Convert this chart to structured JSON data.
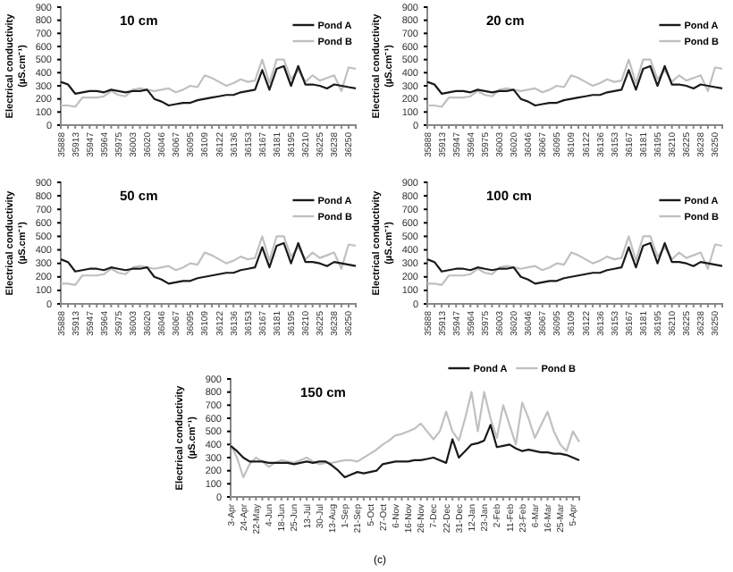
{
  "chart_data": [
    {
      "type": "line",
      "title": "10 cm",
      "ylabel": "Electrical conductivity (µS.cm⁻¹)",
      "ylim": [
        0,
        900
      ],
      "yticks": [
        0,
        100,
        200,
        300,
        400,
        500,
        600,
        700,
        800,
        900
      ],
      "legend": "top right",
      "categories": [
        "35888",
        null,
        "35913",
        null,
        "35947",
        null,
        "35964",
        null,
        "35975",
        null,
        "36003",
        null,
        "36020",
        null,
        "36046",
        null,
        "36067",
        null,
        "36095",
        null,
        "36109",
        null,
        "36122",
        null,
        "36136",
        null,
        "36153",
        null,
        "36167",
        null,
        "36181",
        null,
        "36195",
        null,
        "36210",
        null,
        "36225",
        null,
        "36238",
        null,
        "36250",
        null
      ],
      "series": [
        {
          "name": "Pond A",
          "color": "#1a1a1a",
          "values": [
            330,
            310,
            240,
            250,
            260,
            260,
            250,
            270,
            260,
            250,
            260,
            260,
            270,
            200,
            180,
            150,
            160,
            170,
            170,
            190,
            200,
            210,
            220,
            230,
            230,
            250,
            260,
            270,
            420,
            270,
            430,
            450,
            300,
            450,
            310,
            310,
            300,
            280,
            310,
            300,
            290,
            280
          ]
        },
        {
          "name": "Pond B",
          "color": "#c0c0c0",
          "values": [
            150,
            150,
            140,
            210,
            210,
            210,
            220,
            260,
            230,
            220,
            270,
            280,
            270,
            260,
            270,
            280,
            250,
            270,
            300,
            290,
            380,
            360,
            330,
            300,
            320,
            350,
            330,
            340,
            500,
            320,
            500,
            500,
            350,
            420,
            330,
            380,
            340,
            360,
            380,
            260,
            440,
            430
          ]
        }
      ]
    },
    {
      "type": "line",
      "title": "20 cm",
      "ylabel": "Electrical conductivity (µS.cm⁻¹)",
      "ylim": [
        0,
        900
      ],
      "yticks": [
        0,
        100,
        200,
        300,
        400,
        500,
        600,
        700,
        800,
        900
      ],
      "legend": "top right",
      "categories": [
        "35888",
        null,
        "35913",
        null,
        "35947",
        null,
        "35964",
        null,
        "35975",
        null,
        "36003",
        null,
        "36020",
        null,
        "36046",
        null,
        "36067",
        null,
        "36095",
        null,
        "36109",
        null,
        "36122",
        null,
        "36136",
        null,
        "36153",
        null,
        "36167",
        null,
        "36181",
        null,
        "36195",
        null,
        "36210",
        null,
        "36225",
        null,
        "36238",
        null,
        "36250",
        null
      ],
      "series": [
        {
          "name": "Pond A",
          "color": "#1a1a1a",
          "values": [
            330,
            310,
            240,
            250,
            260,
            260,
            250,
            270,
            260,
            250,
            260,
            260,
            270,
            200,
            180,
            150,
            160,
            170,
            170,
            190,
            200,
            210,
            220,
            230,
            230,
            250,
            260,
            270,
            420,
            270,
            430,
            450,
            300,
            450,
            310,
            310,
            300,
            280,
            310,
            300,
            290,
            280
          ]
        },
        {
          "name": "Pond B",
          "color": "#c0c0c0",
          "values": [
            150,
            150,
            140,
            210,
            210,
            210,
            220,
            260,
            230,
            220,
            270,
            280,
            270,
            260,
            270,
            280,
            250,
            270,
            300,
            290,
            380,
            360,
            330,
            300,
            320,
            350,
            330,
            340,
            500,
            320,
            500,
            500,
            350,
            420,
            330,
            380,
            340,
            360,
            380,
            260,
            440,
            430
          ]
        }
      ]
    },
    {
      "type": "line",
      "title": "50 cm",
      "ylabel": "Electrical conductivity (µS.cm⁻¹)",
      "ylim": [
        0,
        900
      ],
      "yticks": [
        0,
        100,
        200,
        300,
        400,
        500,
        600,
        700,
        800,
        900
      ],
      "legend": "top right",
      "categories": [
        "35888",
        null,
        "35913",
        null,
        "35947",
        null,
        "35964",
        null,
        "35975",
        null,
        "36003",
        null,
        "36020",
        null,
        "36046",
        null,
        "36067",
        null,
        "36095",
        null,
        "36109",
        null,
        "36122",
        null,
        "36136",
        null,
        "36153",
        null,
        "36167",
        null,
        "36181",
        null,
        "36195",
        null,
        "36210",
        null,
        "36225",
        null,
        "36238",
        null,
        "36250",
        null
      ],
      "series": [
        {
          "name": "Pond A",
          "color": "#1a1a1a",
          "values": [
            330,
            310,
            240,
            250,
            260,
            260,
            250,
            270,
            260,
            250,
            260,
            260,
            270,
            200,
            180,
            150,
            160,
            170,
            170,
            190,
            200,
            210,
            220,
            230,
            230,
            250,
            260,
            270,
            420,
            270,
            430,
            450,
            300,
            450,
            310,
            310,
            300,
            280,
            310,
            300,
            290,
            280
          ]
        },
        {
          "name": "Pond B",
          "color": "#c0c0c0",
          "values": [
            150,
            150,
            140,
            210,
            210,
            210,
            220,
            260,
            230,
            220,
            270,
            280,
            270,
            260,
            270,
            280,
            250,
            270,
            300,
            290,
            380,
            360,
            330,
            300,
            320,
            350,
            330,
            340,
            500,
            320,
            500,
            500,
            350,
            420,
            330,
            380,
            340,
            360,
            380,
            260,
            440,
            430
          ]
        }
      ]
    },
    {
      "type": "line",
      "title": "100 cm",
      "ylabel": "Electrical conductivity (µS.cm⁻¹)",
      "ylim": [
        0,
        900
      ],
      "yticks": [
        0,
        100,
        200,
        300,
        400,
        500,
        600,
        700,
        800,
        900
      ],
      "legend": "top right",
      "categories": [
        "35888",
        null,
        "35913",
        null,
        "35947",
        null,
        "35964",
        null,
        "35975",
        null,
        "36003",
        null,
        "36020",
        null,
        "36046",
        null,
        "36067",
        null,
        "36095",
        null,
        "36109",
        null,
        "36122",
        null,
        "36136",
        null,
        "36153",
        null,
        "36167",
        null,
        "36181",
        null,
        "36195",
        null,
        "36210",
        null,
        "36225",
        null,
        "36238",
        null,
        "36250",
        null
      ],
      "series": [
        {
          "name": "Pond A",
          "color": "#1a1a1a",
          "values": [
            330,
            310,
            240,
            250,
            260,
            260,
            250,
            270,
            260,
            250,
            260,
            260,
            270,
            200,
            180,
            150,
            160,
            170,
            170,
            190,
            200,
            210,
            220,
            230,
            230,
            250,
            260,
            270,
            420,
            270,
            430,
            450,
            300,
            450,
            310,
            310,
            300,
            280,
            310,
            300,
            290,
            280
          ]
        },
        {
          "name": "Pond B",
          "color": "#c0c0c0",
          "values": [
            150,
            150,
            140,
            210,
            210,
            210,
            220,
            260,
            230,
            220,
            270,
            280,
            270,
            260,
            270,
            280,
            250,
            270,
            300,
            290,
            380,
            360,
            330,
            300,
            320,
            350,
            330,
            340,
            500,
            320,
            500,
            500,
            350,
            420,
            330,
            380,
            340,
            360,
            380,
            260,
            440,
            430
          ]
        }
      ]
    },
    {
      "type": "line",
      "title": "150 cm",
      "ylabel": "Electrical conductivity (µS.cm⁻¹)",
      "ylim": [
        0,
        900
      ],
      "yticks": [
        0,
        100,
        200,
        300,
        400,
        500,
        600,
        700,
        800,
        900
      ],
      "legend": "top right",
      "annotations": [
        "(c)"
      ],
      "categories": [
        "3-Apr",
        null,
        "24-Apr",
        null,
        "22-May",
        null,
        "4-Jun",
        null,
        "18-Jun",
        null,
        "25-Jun",
        null,
        "13-Jul",
        null,
        "30-Jul",
        null,
        "13-Aug",
        null,
        "1-Sep",
        null,
        "21-Sep",
        null,
        "5-Oct",
        null,
        "27-Oct",
        null,
        "6-Nov",
        null,
        "16-Nov",
        null,
        "26-Nov",
        null,
        "7-Dec",
        null,
        "22-Dec",
        null,
        "31-Dec",
        null,
        "12-Jan",
        null,
        "23-Jan",
        null,
        "2-Feb",
        null,
        "11-Feb",
        null,
        "23-Feb",
        null,
        "6-Mar",
        null,
        "16-Mar",
        null,
        "25-Mar",
        null,
        "5-Apr",
        null
      ],
      "series": [
        {
          "name": "Pond A",
          "color": "#1a1a1a",
          "values": [
            390,
            350,
            300,
            270,
            270,
            270,
            260,
            260,
            260,
            260,
            250,
            260,
            270,
            260,
            270,
            270,
            240,
            200,
            150,
            170,
            190,
            180,
            190,
            200,
            250,
            260,
            270,
            270,
            270,
            280,
            280,
            290,
            300,
            280,
            260,
            440,
            300,
            350,
            400,
            410,
            430,
            550,
            380,
            390,
            400,
            370,
            350,
            360,
            350,
            340,
            340,
            330,
            330,
            320,
            300,
            280
          ]
        },
        {
          "name": "Pond B",
          "color": "#c0c0c0",
          "values": [
            400,
            300,
            150,
            250,
            300,
            270,
            230,
            260,
            280,
            270,
            260,
            280,
            300,
            270,
            250,
            260,
            260,
            270,
            280,
            280,
            270,
            300,
            330,
            360,
            400,
            430,
            470,
            480,
            500,
            520,
            560,
            500,
            440,
            500,
            650,
            500,
            430,
            600,
            800,
            500,
            800,
            600,
            450,
            700,
            550,
            400,
            720,
            600,
            450,
            550,
            650,
            500,
            400,
            350,
            500,
            420
          ]
        }
      ]
    }
  ]
}
